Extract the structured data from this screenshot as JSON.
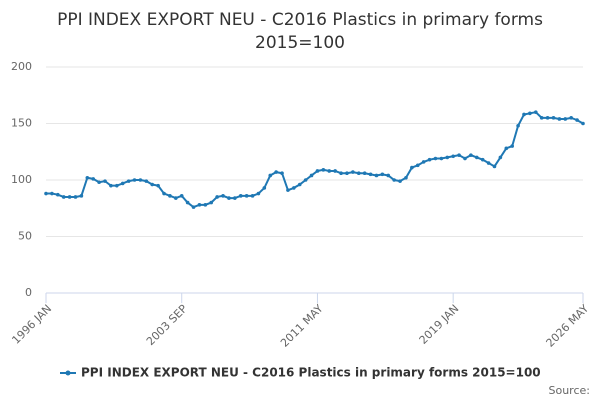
{
  "chart_data": {
    "type": "line",
    "title": [
      "PPI INDEX EXPORT NEU - C2016 Plastics in primary forms",
      "2015=100"
    ],
    "source": "Source:",
    "x": [
      "1996 JAN",
      "1996 MAY",
      "1996 SEP",
      "1997 JAN",
      "1997 MAY",
      "1997 SEP",
      "1998 JAN",
      "1998 MAY",
      "1998 SEP",
      "1999 JAN",
      "1999 MAY",
      "1999 SEP",
      "2000 JAN",
      "2000 MAY",
      "2000 SEP",
      "2001 JAN",
      "2001 MAY",
      "2001 SEP",
      "2002 JAN",
      "2002 MAY",
      "2002 SEP",
      "2003 JAN",
      "2003 MAY",
      "2003 SEP",
      "2004 JAN",
      "2004 MAY",
      "2004 SEP",
      "2005 JAN",
      "2005 MAY",
      "2005 SEP",
      "2006 JAN",
      "2006 MAY",
      "2006 SEP",
      "2007 JAN",
      "2007 MAY",
      "2007 SEP",
      "2008 JAN",
      "2008 MAY",
      "2008 SEP",
      "2009 JAN",
      "2009 MAY",
      "2009 SEP",
      "2010 JAN",
      "2010 MAY",
      "2010 SEP",
      "2011 JAN",
      "2011 MAY",
      "2011 SEP",
      "2012 JAN",
      "2012 MAY",
      "2012 SEP",
      "2013 JAN",
      "2013 MAY",
      "2013 SEP",
      "2014 JAN",
      "2014 MAY",
      "2014 SEP",
      "2015 JAN",
      "2015 MAY",
      "2015 SEP",
      "2016 JAN",
      "2016 MAY",
      "2016 SEP",
      "2017 JAN",
      "2017 MAY",
      "2017 SEP",
      "2018 JAN",
      "2018 MAY",
      "2018 SEP",
      "2019 JAN",
      "2019 MAY",
      "2019 SEP",
      "2020 JAN",
      "2020 MAY",
      "2020 SEP",
      "2021 JAN",
      "2021 MAY",
      "2021 SEP",
      "2022 JAN",
      "2022 MAY",
      "2022 SEP",
      "2023 JAN",
      "2023 MAY",
      "2023 SEP",
      "2024 JAN",
      "2024 MAY",
      "2024 SEP",
      "2025 JAN",
      "2025 MAY",
      "2025 SEP",
      "2026 JAN",
      "2026 MAY"
    ],
    "series": [
      {
        "name": "PPI INDEX EXPORT NEU - C2016 Plastics in primary forms 2015=100",
        "color": "#1f78b4",
        "values": [
          88,
          88,
          87,
          85,
          85,
          85,
          86,
          102,
          101,
          98,
          99,
          95,
          95,
          97,
          99,
          100,
          100,
          99,
          96,
          95,
          88,
          86,
          84,
          86,
          80,
          76,
          78,
          78,
          80,
          85,
          86,
          84,
          84,
          86,
          86,
          86,
          88,
          93,
          104,
          107,
          106,
          91,
          93,
          96,
          100,
          104,
          108,
          109,
          108,
          108,
          106,
          106,
          107,
          106,
          106,
          105,
          104,
          105,
          104,
          100,
          99,
          102,
          111,
          113,
          116,
          118,
          119,
          119,
          120,
          121,
          122,
          119,
          122,
          120,
          118,
          115,
          112,
          120,
          128,
          130,
          148,
          158,
          159,
          160,
          155,
          155,
          155,
          154,
          154,
          155,
          153,
          150
        ]
      }
    ],
    "xticks": [
      "1996 JAN",
      "2003 SEP",
      "2011 MAY",
      "2019 JAN",
      "2026 MAY"
    ],
    "ylim": [
      0,
      200
    ],
    "yticks": [
      0,
      50,
      100,
      150,
      200
    ],
    "grid": true
  }
}
